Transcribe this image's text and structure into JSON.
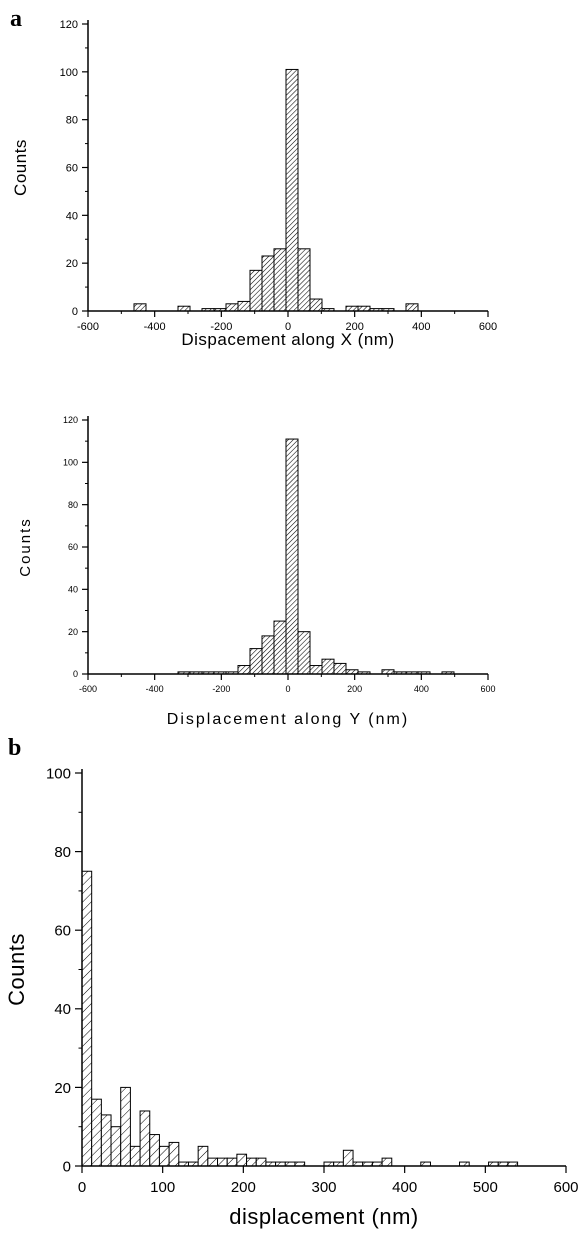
{
  "panel_labels": {
    "a": "a",
    "b": "b"
  },
  "chart_data": [
    {
      "type": "bar",
      "panel": "a",
      "xlabel": "Dispacement along X (nm)",
      "ylabel": "Counts",
      "xlim": [
        -600,
        600
      ],
      "ylim": [
        0,
        120
      ],
      "xticks": [
        -600,
        -400,
        -200,
        0,
        200,
        400,
        600
      ],
      "yticks": [
        0,
        20,
        40,
        60,
        80,
        100,
        120
      ],
      "bin_width": 36,
      "bins": [
        {
          "x": -444,
          "count": 3
        },
        {
          "x": -312,
          "count": 2
        },
        {
          "x": -240,
          "count": 1
        },
        {
          "x": -204,
          "count": 1
        },
        {
          "x": -168,
          "count": 3
        },
        {
          "x": -132,
          "count": 4
        },
        {
          "x": -96,
          "count": 17
        },
        {
          "x": -60,
          "count": 23
        },
        {
          "x": -24,
          "count": 26
        },
        {
          "x": 12,
          "count": 101
        },
        {
          "x": 48,
          "count": 26
        },
        {
          "x": 84,
          "count": 5
        },
        {
          "x": 120,
          "count": 1
        },
        {
          "x": 192,
          "count": 2
        },
        {
          "x": 228,
          "count": 2
        },
        {
          "x": 264,
          "count": 1
        },
        {
          "x": 300,
          "count": 1
        },
        {
          "x": 372,
          "count": 3
        }
      ]
    },
    {
      "type": "bar",
      "panel": "a",
      "xlabel": "Displacement along Y (nm)",
      "ylabel": "Counts",
      "xlim": [
        -600,
        600
      ],
      "ylim": [
        0,
        120
      ],
      "xticks": [
        -600,
        -400,
        -200,
        0,
        200,
        400,
        600
      ],
      "yticks": [
        0,
        20,
        40,
        60,
        80,
        100,
        120
      ],
      "bin_width": 36,
      "bins": [
        {
          "x": -312,
          "count": 1
        },
        {
          "x": -276,
          "count": 1
        },
        {
          "x": -240,
          "count": 1
        },
        {
          "x": -204,
          "count": 1
        },
        {
          "x": -168,
          "count": 1
        },
        {
          "x": -132,
          "count": 4
        },
        {
          "x": -96,
          "count": 12
        },
        {
          "x": -60,
          "count": 18
        },
        {
          "x": -24,
          "count": 25
        },
        {
          "x": 12,
          "count": 111
        },
        {
          "x": 48,
          "count": 20
        },
        {
          "x": 84,
          "count": 4
        },
        {
          "x": 120,
          "count": 7
        },
        {
          "x": 156,
          "count": 5
        },
        {
          "x": 192,
          "count": 2
        },
        {
          "x": 228,
          "count": 1
        },
        {
          "x": 300,
          "count": 2
        },
        {
          "x": 336,
          "count": 1
        },
        {
          "x": 372,
          "count": 1
        },
        {
          "x": 408,
          "count": 1
        },
        {
          "x": 480,
          "count": 1
        }
      ]
    },
    {
      "type": "bar",
      "panel": "b",
      "xlabel": "displacement (nm)",
      "ylabel": "Counts",
      "xlim": [
        0,
        600
      ],
      "ylim": [
        0,
        100
      ],
      "xticks": [
        0,
        100,
        200,
        300,
        400,
        500,
        600
      ],
      "yticks": [
        0,
        20,
        40,
        60,
        80,
        100
      ],
      "bin_width": 12,
      "bins": [
        {
          "x": 6,
          "count": 75
        },
        {
          "x": 18,
          "count": 17
        },
        {
          "x": 30,
          "count": 13
        },
        {
          "x": 42,
          "count": 10
        },
        {
          "x": 54,
          "count": 20
        },
        {
          "x": 66,
          "count": 5
        },
        {
          "x": 78,
          "count": 14
        },
        {
          "x": 90,
          "count": 8
        },
        {
          "x": 102,
          "count": 5
        },
        {
          "x": 114,
          "count": 6
        },
        {
          "x": 126,
          "count": 1
        },
        {
          "x": 138,
          "count": 1
        },
        {
          "x": 150,
          "count": 5
        },
        {
          "x": 162,
          "count": 2
        },
        {
          "x": 174,
          "count": 2
        },
        {
          "x": 186,
          "count": 2
        },
        {
          "x": 198,
          "count": 3
        },
        {
          "x": 210,
          "count": 2
        },
        {
          "x": 222,
          "count": 2
        },
        {
          "x": 234,
          "count": 1
        },
        {
          "x": 246,
          "count": 1
        },
        {
          "x": 258,
          "count": 1
        },
        {
          "x": 270,
          "count": 1
        },
        {
          "x": 306,
          "count": 1
        },
        {
          "x": 318,
          "count": 1
        },
        {
          "x": 330,
          "count": 4
        },
        {
          "x": 342,
          "count": 1
        },
        {
          "x": 354,
          "count": 1
        },
        {
          "x": 366,
          "count": 1
        },
        {
          "x": 378,
          "count": 2
        },
        {
          "x": 426,
          "count": 1
        },
        {
          "x": 474,
          "count": 1
        },
        {
          "x": 510,
          "count": 1
        },
        {
          "x": 522,
          "count": 1
        },
        {
          "x": 534,
          "count": 1
        }
      ]
    }
  ]
}
